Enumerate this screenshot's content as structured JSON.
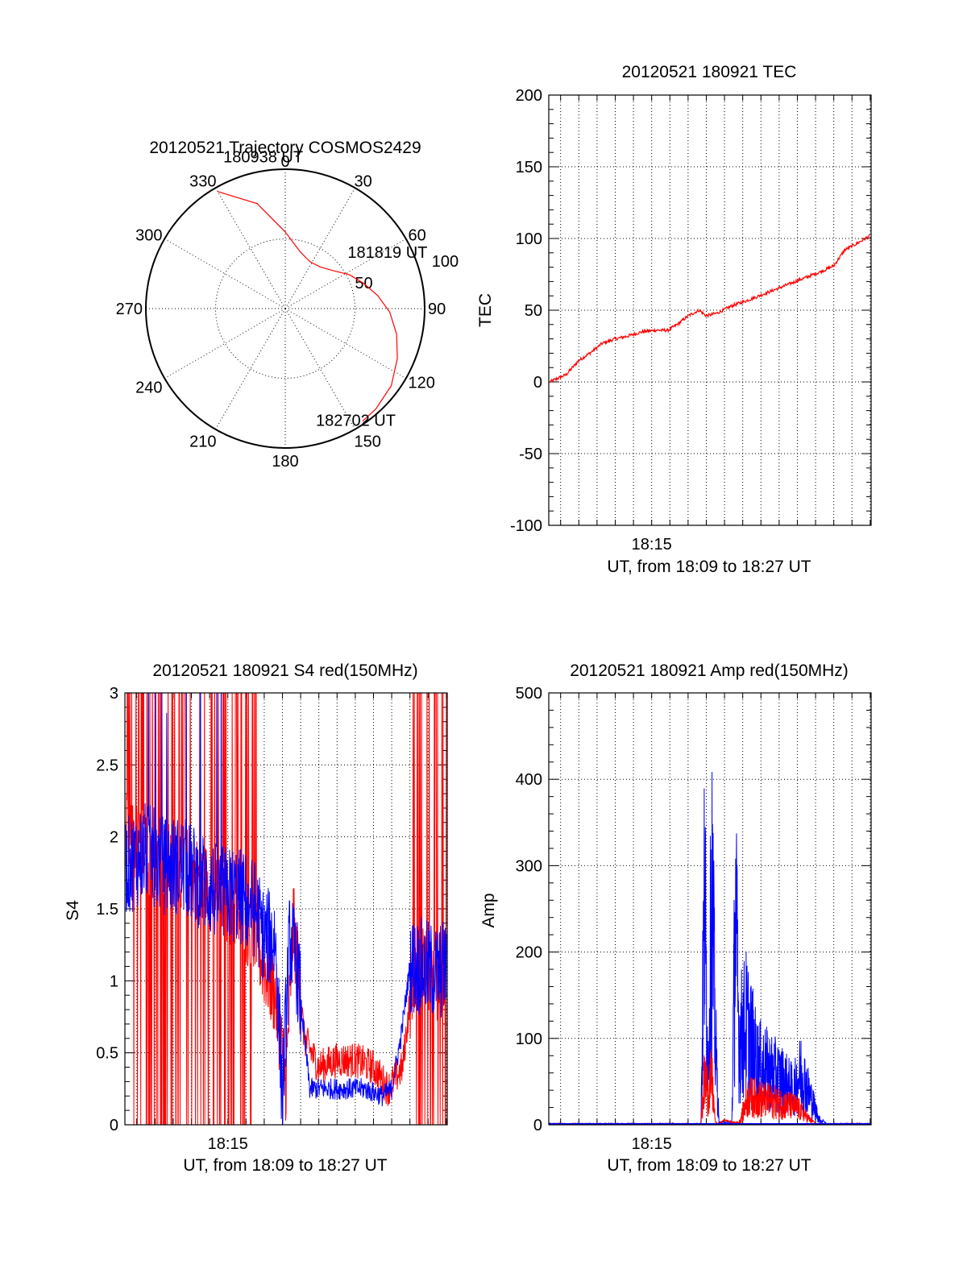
{
  "colors": {
    "red": "#ff0000",
    "blue": "#0000ff",
    "axis": "#000000",
    "background": "#ffffff"
  },
  "chart_data": [
    {
      "type": "polar",
      "title": "20120521 Trajectory COSMOS2429",
      "angle_labels": [
        "0",
        "30",
        "60",
        "90",
        "120",
        "150",
        "180",
        "210",
        "240",
        "270",
        "300",
        "330"
      ],
      "radial_labels": [
        "50",
        "100"
      ],
      "radial_range": [
        0,
        100
      ],
      "grid": true,
      "series": [
        {
          "color": "red",
          "azimuth_deg": [
            330,
            345,
            0,
            15,
            28,
            40,
            52,
            62,
            72,
            82,
            92,
            103,
            114,
            126,
            138,
            145.5
          ],
          "zenith": [
            97,
            78,
            55,
            42,
            38,
            39,
            44,
            52,
            59,
            67,
            75,
            82,
            88,
            94,
            97,
            98
          ]
        }
      ],
      "annotations": [
        {
          "text": "180938 UT",
          "azimuth_deg": 330,
          "zenith": 97
        },
        {
          "text": "181819 UT",
          "azimuth_deg": 62,
          "zenith": 52
        },
        {
          "text": "182702 UT",
          "azimuth_deg": 145.5,
          "zenith": 98
        }
      ]
    },
    {
      "type": "line",
      "title": "20120521 180921 TEC",
      "xlabel": "UT, from 18:09 to 18:27 UT",
      "ylabel": "TEC",
      "xlim_min": [
        9.35,
        27.05
      ],
      "ylim": [
        -100,
        200
      ],
      "yticks": [
        "-100",
        "-50",
        "0",
        "50",
        "100",
        "150",
        "200"
      ],
      "xticks": [
        {
          "t_min": 15,
          "label": "18:15"
        }
      ],
      "grid": true,
      "series": [
        {
          "color": "red",
          "x_min": [
            9.4,
            10.3,
            11.0,
            11.6,
            12.3,
            13.0,
            13.7,
            14.5,
            15.2,
            15.9,
            16.4,
            17.0,
            17.6,
            18.0,
            18.6,
            19.4,
            20.5,
            21.5,
            22.5,
            23.5,
            24.5,
            25.0,
            25.6,
            26.2,
            27.0
          ],
          "values": [
            0,
            5,
            15,
            20,
            27,
            30,
            32,
            35,
            36,
            36,
            40,
            46,
            50,
            46,
            48,
            53,
            58,
            63,
            68,
            73,
            78,
            81,
            92,
            96,
            102
          ]
        }
      ]
    },
    {
      "type": "line",
      "title": "20120521 180921 S4 red(150MHz)",
      "xlabel": "UT, from 18:09 to 18:27 UT",
      "ylabel": "S4",
      "xlim_min": [
        9.35,
        27.05
      ],
      "ylim": [
        0,
        3
      ],
      "yticks": [
        "0",
        "0.5",
        "1",
        "1.5",
        "2",
        "2.5",
        "3"
      ],
      "xticks": [
        {
          "t_min": 15,
          "label": "18:15"
        }
      ],
      "grid": true,
      "series": [
        {
          "color": "red",
          "x_min": [
            9.5,
            10.5,
            11.5,
            12.5,
            13.5,
            14.5,
            15.5,
            16.5,
            17.0,
            17.6,
            18.2,
            18.6,
            19.2,
            20.0,
            21.0,
            22.0,
            23.0,
            23.8,
            24.6,
            25.2,
            25.8,
            26.5,
            27.0
          ],
          "values": [
            2.0,
            1.9,
            1.8,
            1.8,
            1.7,
            1.6,
            1.5,
            1.3,
            1.1,
            0.9,
            0.3,
            1.4,
            0.6,
            0.4,
            0.45,
            0.45,
            0.4,
            0.25,
            0.4,
            1.1,
            1.1,
            1.0,
            1.05
          ]
        },
        {
          "color": "blue",
          "x_min": [
            9.5,
            10.5,
            11.5,
            12.5,
            13.5,
            14.5,
            15.5,
            16.5,
            17.0,
            17.6,
            18.0,
            18.4,
            18.8,
            19.5,
            20.5,
            21.5,
            22.5,
            23.5,
            24.0,
            24.5,
            25.0,
            25.5,
            26.5,
            27.0
          ],
          "values": [
            1.8,
            1.9,
            1.8,
            1.8,
            1.7,
            1.6,
            1.6,
            1.5,
            1.3,
            1.3,
            0.2,
            1.3,
            1.1,
            0.25,
            0.25,
            0.25,
            0.25,
            0.2,
            0.25,
            0.6,
            1.1,
            1.1,
            1.05,
            1.1
          ]
        }
      ]
    },
    {
      "type": "line",
      "title": "20120521 180921 Amp red(150MHz)",
      "xlabel": "UT, from 18:09 to 18:27 UT",
      "ylabel": "Amp",
      "xlim_min": [
        9.35,
        27.05
      ],
      "ylim": [
        0,
        500
      ],
      "yticks": [
        "0",
        "100",
        "200",
        "300",
        "400",
        "500"
      ],
      "xticks": [
        {
          "t_min": 15,
          "label": "18:15"
        }
      ],
      "grid": true,
      "series": [
        {
          "color": "red",
          "x_min": [
            9.4,
            17.7,
            17.9,
            18.1,
            18.3,
            18.5,
            18.7,
            19.0,
            19.4,
            19.8,
            20.3,
            21.0,
            21.8,
            22.5,
            23.0,
            23.5,
            24.0,
            27.0
          ],
          "values": [
            0,
            0,
            80,
            60,
            80,
            2,
            0,
            5,
            2,
            2,
            50,
            45,
            40,
            35,
            30,
            15,
            0,
            0
          ]
        },
        {
          "color": "blue",
          "x_min": [
            9.4,
            17.7,
            17.9,
            18.1,
            18.3,
            18.5,
            18.7,
            19.0,
            19.4,
            19.6,
            19.8,
            20.2,
            20.8,
            21.5,
            22.2,
            22.8,
            23.2,
            23.6,
            24.2,
            24.6,
            27.0
          ],
          "values": [
            0,
            0,
            400,
            100,
            420,
            150,
            2,
            2,
            2,
            375,
            150,
            180,
            110,
            95,
            80,
            60,
            95,
            60,
            10,
            0,
            0
          ]
        }
      ]
    }
  ]
}
